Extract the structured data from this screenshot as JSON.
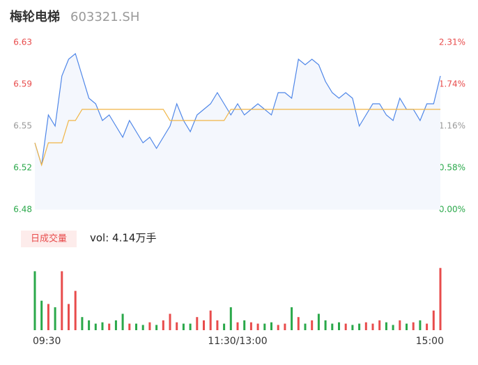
{
  "chart_data": {
    "type": "line",
    "title": "梅轮电梯",
    "subtitle": "603321.SH",
    "x": [
      0,
      4,
      8,
      12,
      16,
      20,
      24,
      28,
      32,
      36,
      40,
      44,
      48,
      52,
      56,
      60,
      64,
      68,
      72,
      76,
      80,
      84,
      88,
      92,
      96,
      100,
      104,
      108,
      112,
      116,
      120,
      124,
      128,
      132,
      136,
      140,
      144,
      148,
      152,
      156,
      160,
      164,
      168,
      172,
      176,
      180,
      184,
      188,
      192,
      196,
      200,
      204,
      208,
      212,
      216,
      220,
      224,
      228,
      232,
      236,
      240
    ],
    "xlim": [
      0,
      240
    ],
    "xticks": [
      {
        "value": 0,
        "label": "09:30"
      },
      {
        "value": 120,
        "label": "11:30/13:00"
      },
      {
        "value": 240,
        "label": "15:00"
      }
    ],
    "ylim": [
      6.48,
      6.63
    ],
    "yticks": [
      {
        "value": 6.63,
        "label": "6.63"
      },
      {
        "value": 6.5925,
        "label": "6.59"
      },
      {
        "value": 6.555,
        "label": "6.55"
      },
      {
        "value": 6.5175,
        "label": "6.52"
      },
      {
        "value": 6.48,
        "label": "6.48"
      }
    ],
    "y2lim": [
      0,
      2.31
    ],
    "y2ticks": [
      {
        "value": 2.31,
        "label": "2.31%"
      },
      {
        "value": 1.7325,
        "label": "1.74%"
      },
      {
        "value": 1.155,
        "label": "1.16%"
      },
      {
        "value": 0.5775,
        "label": "0.58%"
      },
      {
        "value": 0,
        "label": "0.00%"
      }
    ],
    "series": [
      {
        "color": "#4e86e8",
        "values": [
          6.54,
          6.52,
          6.565,
          6.555,
          6.6,
          6.615,
          6.62,
          6.6,
          6.58,
          6.575,
          6.56,
          6.565,
          6.555,
          6.545,
          6.56,
          6.55,
          6.54,
          6.545,
          6.535,
          6.545,
          6.555,
          6.575,
          6.56,
          6.55,
          6.565,
          6.57,
          6.575,
          6.585,
          6.575,
          6.565,
          6.575,
          6.565,
          6.57,
          6.575,
          6.57,
          6.565,
          6.585,
          6.585,
          6.58,
          6.615,
          6.61,
          6.615,
          6.61,
          6.595,
          6.585,
          6.58,
          6.585,
          6.58,
          6.555,
          6.565,
          6.575,
          6.575,
          6.565,
          6.56,
          6.58,
          6.57,
          6.57,
          6.56,
          6.575,
          6.575,
          6.6
        ]
      },
      {
        "color": "#f0b545",
        "values": [
          6.54,
          6.52,
          6.54,
          6.54,
          6.54,
          6.56,
          6.56,
          6.57,
          6.57,
          6.57,
          6.57,
          6.57,
          6.57,
          6.57,
          6.57,
          6.57,
          6.57,
          6.57,
          6.57,
          6.57,
          6.56,
          6.56,
          6.56,
          6.56,
          6.56,
          6.56,
          6.56,
          6.56,
          6.56,
          6.57,
          6.57,
          6.57,
          6.57,
          6.57,
          6.57,
          6.57,
          6.57,
          6.57,
          6.57,
          6.57,
          6.57,
          6.57,
          6.57,
          6.57,
          6.57,
          6.57,
          6.57,
          6.57,
          6.57,
          6.57,
          6.57,
          6.57,
          6.57,
          6.57,
          6.57,
          6.57,
          6.57,
          6.57,
          6.57,
          6.57,
          6.57
        ]
      }
    ],
    "volume": {
      "label": "日成交量",
      "text": "vol: 4.14万手",
      "ylim": [
        0,
        100
      ],
      "up_color": "#e84c4c",
      "down_color": "#2aa84a",
      "values": [
        90,
        45,
        40,
        35,
        90,
        40,
        60,
        20,
        15,
        10,
        12,
        10,
        15,
        25,
        10,
        10,
        8,
        12,
        8,
        15,
        25,
        12,
        10,
        10,
        20,
        15,
        30,
        15,
        10,
        35,
        12,
        15,
        12,
        10,
        10,
        12,
        8,
        10,
        35,
        20,
        10,
        15,
        25,
        15,
        10,
        12,
        10,
        8,
        10,
        12,
        10,
        15,
        12,
        8,
        15,
        10,
        12,
        15,
        10,
        30,
        95
      ]
    }
  }
}
